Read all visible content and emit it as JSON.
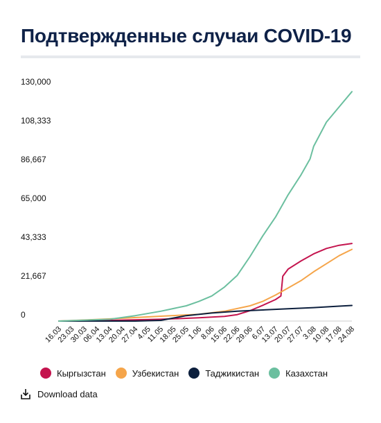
{
  "title": "Подтвержденные случаи COVID-19",
  "download_label": "Download data",
  "chart_data": {
    "type": "line",
    "title": "Подтвержденные случаи COVID-19",
    "ylim": [
      0,
      130000
    ],
    "y_ticks": [
      "0",
      "21,667",
      "43,333",
      "65,000",
      "86,667",
      "108,333",
      "130,000"
    ],
    "y_tick_values": [
      0,
      21667,
      43333,
      65000,
      86667,
      108333,
      130000
    ],
    "x_ticks": [
      "16.03",
      "23.03",
      "30.03",
      "06.04",
      "13.04",
      "20.04",
      "27.04",
      "4.05",
      "11.05",
      "18.05",
      "25.05",
      "1.06",
      "8.06",
      "15.06",
      "22.06",
      "29.06",
      "6.07",
      "13.07",
      "20.07",
      "27.07",
      "3.08",
      "10.08",
      "17.08",
      "24.08"
    ],
    "x_days_per_tick": 7,
    "grid": false,
    "legend_position": "bottom",
    "series": [
      {
        "name": "Кыргызстан",
        "color": "#c4144e",
        "x": [
          "16.03",
          "13.04",
          "11.05",
          "1.06",
          "15.06",
          "22.06",
          "29.06",
          "6.07",
          "13.07",
          "16.07",
          "17.07",
          "20.07",
          "27.07",
          "3.08",
          "10.08",
          "17.08",
          "24.08"
        ],
        "y": [
          0,
          400,
          1000,
          1800,
          2600,
          3600,
          5800,
          8800,
          12000,
          14000,
          25000,
          29000,
          33500,
          37500,
          40500,
          42300,
          43300
        ]
      },
      {
        "name": "Узбекистан",
        "color": "#f5a54a",
        "x": [
          "16.03",
          "13.04",
          "11.05",
          "1.06",
          "15.06",
          "29.06",
          "6.07",
          "13.07",
          "20.07",
          "27.07",
          "3.08",
          "10.08",
          "17.08",
          "24.08"
        ],
        "y": [
          0,
          1200,
          2700,
          3800,
          5500,
          8500,
          11000,
          14500,
          18500,
          22500,
          27500,
          32000,
          36500,
          40000
        ]
      },
      {
        "name": "Таджикистан",
        "color": "#0c1f3d",
        "x": [
          "16.03",
          "27.04",
          "11.05",
          "25.05",
          "8.06",
          "22.06",
          "6.07",
          "20.07",
          "3.08",
          "17.08",
          "24.08"
        ],
        "y": [
          0,
          0,
          400,
          3000,
          4500,
          5500,
          6200,
          6900,
          7500,
          8300,
          8700
        ]
      },
      {
        "name": "Казахстан",
        "color": "#6bbf9f",
        "x": [
          "16.03",
          "13.04",
          "27.04",
          "11.05",
          "25.05",
          "1.06",
          "8.06",
          "15.06",
          "22.06",
          "29.06",
          "6.07",
          "13.07",
          "20.07",
          "27.07",
          "1.08",
          "3.08",
          "10.08",
          "17.08",
          "24.08"
        ],
        "y": [
          0,
          1000,
          3000,
          5500,
          8500,
          11000,
          14000,
          19000,
          25500,
          36000,
          47500,
          58000,
          70500,
          81500,
          90500,
          97500,
          111000,
          119500,
          128000
        ]
      }
    ]
  }
}
